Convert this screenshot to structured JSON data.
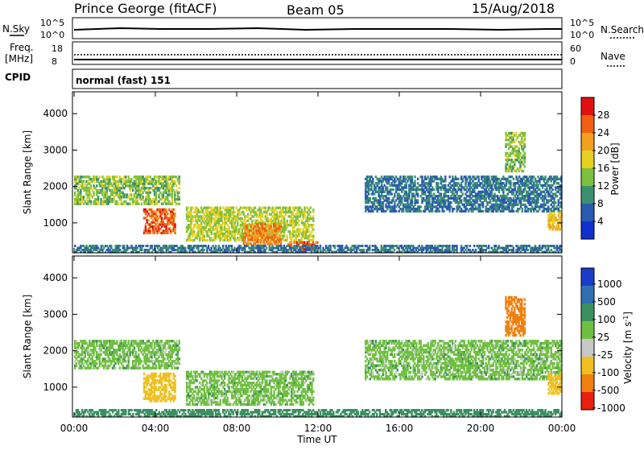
{
  "header": {
    "station": "Prince George (fitACF)",
    "beam": "Beam 05",
    "date": "15/Aug/2018"
  },
  "status_panels": {
    "nsky_label": "N.Sky",
    "nsky_ticks": [
      "10^5",
      "10^0"
    ],
    "nsearch_label": "N.Search",
    "nsearch_ticks": [
      "10^5",
      "10^0"
    ],
    "freq_label": "Freq.",
    "freq_unit": "[MHz]",
    "freq_ticks": [
      "18",
      "8"
    ],
    "nave_label": "Nave",
    "nave_ticks": [
      "60",
      "0"
    ],
    "cpid_label": "CPID",
    "cpid_value": "normal (fast) 151"
  },
  "chart_data": [
    {
      "type": "heatmap",
      "name": "power",
      "ylabel": "Slant Range [km]",
      "yticks": [
        "4000",
        "3000",
        "2000",
        "1000"
      ],
      "ylim": [
        180,
        4600
      ],
      "colorbar_label": "Power [dB]",
      "colorbar_ticks": [
        "28",
        "24",
        "20",
        "16",
        "12",
        "8",
        "4"
      ],
      "colorbar_colors": [
        "#e01010",
        "#f06010",
        "#f2a020",
        "#e6d020",
        "#7cc040",
        "#3a9070",
        "#2a5ab0",
        "#1030d0"
      ],
      "regions": [
        {
          "t0": 0.0,
          "t1": 5.2,
          "r0": 1500,
          "r1": 2300,
          "level": 14
        },
        {
          "t0": 3.4,
          "t1": 5.0,
          "r0": 700,
          "r1": 1400,
          "level": 26
        },
        {
          "t0": 5.5,
          "t1": 11.8,
          "r0": 500,
          "r1": 1450,
          "level": 16
        },
        {
          "t0": 8.3,
          "t1": 10.2,
          "r0": 400,
          "r1": 1000,
          "level": 24
        },
        {
          "t0": 10.5,
          "t1": 12.0,
          "r0": 250,
          "r1": 500,
          "level": 26
        },
        {
          "t0": 14.3,
          "t1": 24.0,
          "r0": 1300,
          "r1": 2300,
          "level": 8
        },
        {
          "t0": 23.3,
          "t1": 24.0,
          "r0": 800,
          "r1": 1300,
          "level": 20
        },
        {
          "t0": 0.0,
          "t1": 24.0,
          "r0": 180,
          "r1": 400,
          "level": 8
        },
        {
          "t0": 21.2,
          "t1": 22.2,
          "r0": 2400,
          "r1": 3500,
          "level": 14
        }
      ]
    },
    {
      "type": "heatmap",
      "name": "velocity",
      "ylabel": "Slant Range [km]",
      "yticks": [
        "4000",
        "3000",
        "2000",
        "1000"
      ],
      "ylim": [
        180,
        4600
      ],
      "colorbar_label": "Velocity [m s^-1]",
      "colorbar_ticks": [
        "1000",
        "500",
        "100",
        "25",
        "-25",
        "-100",
        "-500",
        "-1000"
      ],
      "colorbar_colors": [
        "#1a3cc8",
        "#3070b0",
        "#3a9060",
        "#70c040",
        "#c8c8c8",
        "#f0c020",
        "#f08010",
        "#e82010"
      ],
      "regions": [
        {
          "t0": 0.0,
          "t1": 5.2,
          "r0": 1500,
          "r1": 2300,
          "level": 0
        },
        {
          "t0": 3.4,
          "t1": 5.0,
          "r0": 600,
          "r1": 1400,
          "level": -300
        },
        {
          "t0": 5.5,
          "t1": 11.8,
          "r0": 500,
          "r1": 1450,
          "level": 0
        },
        {
          "t0": 14.3,
          "t1": 24.0,
          "r0": 1200,
          "r1": 2300,
          "level": 0
        },
        {
          "t0": 21.2,
          "t1": 22.2,
          "r0": 2400,
          "r1": 3500,
          "level": -800
        },
        {
          "t0": 23.3,
          "t1": 24.0,
          "r0": 800,
          "r1": 1400,
          "level": -400
        },
        {
          "t0": 0.0,
          "t1": 24.0,
          "r0": 180,
          "r1": 400,
          "level": 60
        }
      ]
    }
  ],
  "xaxis": {
    "ticks": [
      "00:00",
      "04:00",
      "08:00",
      "12:00",
      "16:00",
      "20:00",
      "00:00"
    ],
    "label": "Time UT",
    "range_hours": [
      0,
      24
    ]
  }
}
